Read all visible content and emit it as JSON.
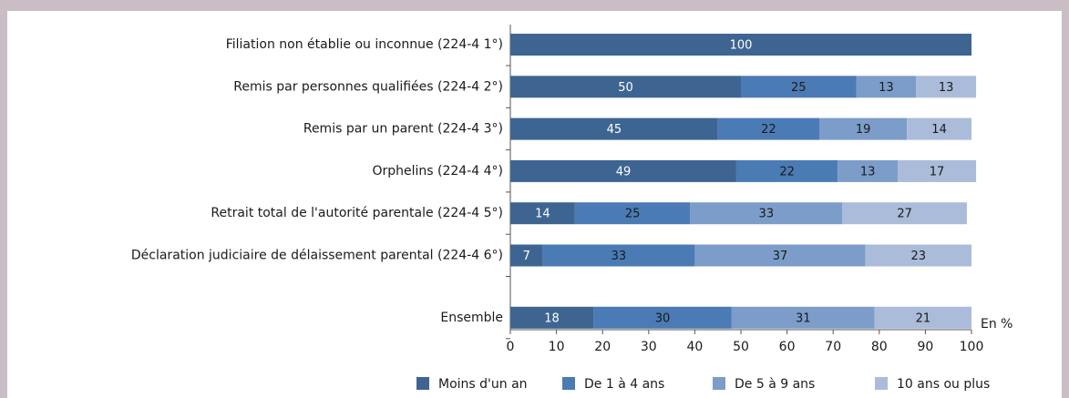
{
  "chart_data": {
    "type": "stacked-bar-horizontal",
    "categories": [
      "Filiation non établie ou inconnue (224-4 1°)",
      "Remis par personnes qualifiées (224-4 2°)",
      "Remis par un parent (224-4 3°)",
      "Orphelins (224-4 4°)",
      "Retrait total de l'autorité parentale (224-4 5°)",
      "Déclaration judiciaire de délaissement parental (224-4 6°)",
      "Ensemble"
    ],
    "series": [
      {
        "name": "Moins d'un an",
        "color": "#3e6591",
        "label_color": "#ffffff",
        "values": [
          100,
          50,
          45,
          49,
          14,
          7,
          18
        ]
      },
      {
        "name": "De 1 à 4 ans",
        "color": "#4b7bb5",
        "label_color": "#1a1a1a",
        "values": [
          null,
          25,
          22,
          22,
          25,
          33,
          30
        ]
      },
      {
        "name": "De 5 à 9 ans",
        "color": "#7c9dc9",
        "label_color": "#1a1a1a",
        "values": [
          null,
          13,
          19,
          13,
          33,
          37,
          31
        ]
      },
      {
        "name": "10 ans ou plus",
        "color": "#aabcd9",
        "label_color": "#1a1a1a",
        "values": [
          null,
          13,
          14,
          17,
          27,
          23,
          21
        ]
      }
    ],
    "xlabel": "En %",
    "xlim": [
      0,
      100
    ],
    "xticks": [
      0,
      10,
      20,
      30,
      40,
      50,
      60,
      70,
      80,
      90,
      100
    ],
    "legend": "bottom"
  }
}
